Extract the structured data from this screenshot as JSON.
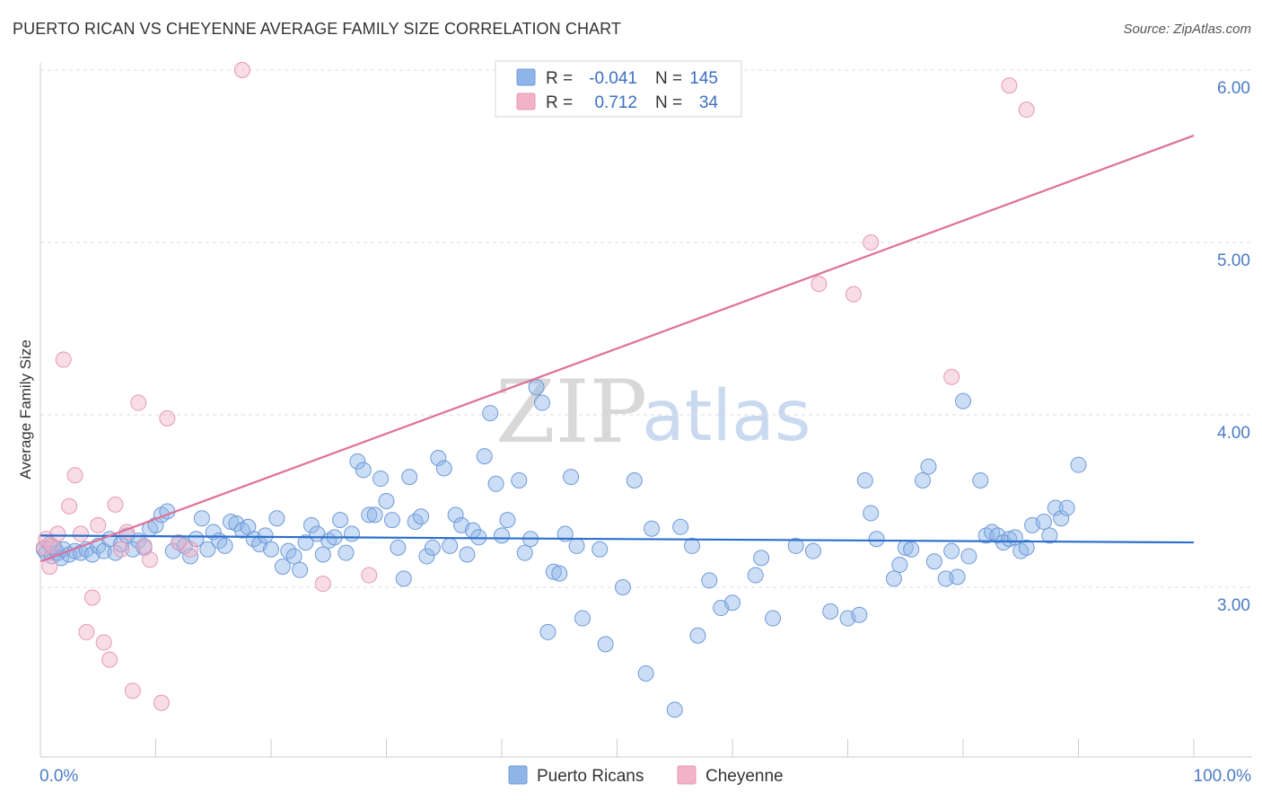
{
  "title": "PUERTO RICAN VS CHEYENNE AVERAGE FAMILY SIZE CORRELATION CHART",
  "source": "Source: ZipAtlas.com",
  "chart_data": {
    "type": "scatter",
    "ylabel": "Average Family Size",
    "xlim": [
      0,
      100
    ],
    "ylim": [
      2.0,
      6.1
    ],
    "x_tick_labels": [
      "0.0%",
      "100.0%"
    ],
    "y_ticks": [
      3.0,
      4.0,
      5.0,
      6.0
    ],
    "y_tick_labels": [
      "3.00",
      "4.00",
      "5.00",
      "6.00"
    ],
    "grid": "horizontal dashed",
    "watermark": [
      "ZIP",
      "atlas"
    ],
    "legend": {
      "placement": "top-center",
      "rows": [
        {
          "r_label": "R =",
          "r_value": "-0.041",
          "n_label": "N =",
          "n_value": "145"
        },
        {
          "r_label": "R =",
          "r_value": "0.712",
          "n_label": "N =",
          "n_value": "34"
        }
      ]
    },
    "series": [
      {
        "name": "Puerto Ricans",
        "color": "#8fb5e8",
        "line_color": "#2d6fcc",
        "trend": {
          "x": [
            0,
            100
          ],
          "y": [
            3.3,
            3.26
          ]
        },
        "points": [
          [
            0.3,
            3.22
          ],
          [
            0.5,
            3.2
          ],
          [
            0.8,
            3.25
          ],
          [
            1.0,
            3.18
          ],
          [
            1.2,
            3.23
          ],
          [
            1.5,
            3.2
          ],
          [
            1.8,
            3.17
          ],
          [
            2.0,
            3.22
          ],
          [
            2.5,
            3.19
          ],
          [
            3.0,
            3.21
          ],
          [
            3.5,
            3.2
          ],
          [
            4.0,
            3.22
          ],
          [
            4.5,
            3.19
          ],
          [
            5.0,
            3.24
          ],
          [
            5.5,
            3.21
          ],
          [
            6.0,
            3.28
          ],
          [
            6.5,
            3.2
          ],
          [
            7.0,
            3.25
          ],
          [
            7.5,
            3.3
          ],
          [
            8.0,
            3.22
          ],
          [
            8.5,
            3.27
          ],
          [
            9.0,
            3.23
          ],
          [
            9.5,
            3.34
          ],
          [
            10.0,
            3.36
          ],
          [
            10.5,
            3.42
          ],
          [
            11.0,
            3.44
          ],
          [
            11.5,
            3.21
          ],
          [
            12.0,
            3.26
          ],
          [
            12.5,
            3.24
          ],
          [
            13.0,
            3.18
          ],
          [
            13.5,
            3.28
          ],
          [
            14.0,
            3.4
          ],
          [
            14.5,
            3.22
          ],
          [
            15.0,
            3.32
          ],
          [
            15.5,
            3.27
          ],
          [
            16.0,
            3.24
          ],
          [
            16.5,
            3.38
          ],
          [
            17.0,
            3.37
          ],
          [
            17.5,
            3.33
          ],
          [
            18.0,
            3.35
          ],
          [
            18.5,
            3.28
          ],
          [
            19.0,
            3.25
          ],
          [
            19.5,
            3.3
          ],
          [
            20.0,
            3.22
          ],
          [
            20.5,
            3.4
          ],
          [
            21.0,
            3.12
          ],
          [
            21.5,
            3.21
          ],
          [
            22.0,
            3.18
          ],
          [
            22.5,
            3.1
          ],
          [
            23.0,
            3.26
          ],
          [
            23.5,
            3.36
          ],
          [
            24.0,
            3.31
          ],
          [
            24.5,
            3.19
          ],
          [
            25.0,
            3.27
          ],
          [
            25.5,
            3.29
          ],
          [
            26.0,
            3.39
          ],
          [
            26.5,
            3.2
          ],
          [
            27.0,
            3.31
          ],
          [
            27.5,
            3.73
          ],
          [
            28.0,
            3.68
          ],
          [
            28.5,
            3.42
          ],
          [
            29.0,
            3.42
          ],
          [
            29.5,
            3.63
          ],
          [
            30.0,
            3.5
          ],
          [
            30.5,
            3.39
          ],
          [
            31.0,
            3.23
          ],
          [
            31.5,
            3.05
          ],
          [
            32.0,
            3.64
          ],
          [
            32.5,
            3.38
          ],
          [
            33.0,
            3.41
          ],
          [
            33.5,
            3.18
          ],
          [
            34.0,
            3.23
          ],
          [
            34.5,
            3.75
          ],
          [
            35.0,
            3.69
          ],
          [
            35.5,
            3.24
          ],
          [
            36.0,
            3.42
          ],
          [
            36.5,
            3.36
          ],
          [
            37.0,
            3.19
          ],
          [
            37.5,
            3.33
          ],
          [
            38.0,
            3.29
          ],
          [
            38.5,
            3.76
          ],
          [
            39.0,
            4.01
          ],
          [
            39.5,
            3.6
          ],
          [
            40.0,
            3.3
          ],
          [
            40.5,
            3.39
          ],
          [
            41.5,
            3.62
          ],
          [
            42.0,
            3.2
          ],
          [
            42.5,
            3.28
          ],
          [
            43.0,
            4.16
          ],
          [
            43.5,
            4.07
          ],
          [
            44.0,
            2.74
          ],
          [
            44.5,
            3.09
          ],
          [
            45.0,
            3.08
          ],
          [
            45.5,
            3.31
          ],
          [
            46.0,
            3.64
          ],
          [
            46.5,
            3.24
          ],
          [
            47.0,
            2.82
          ],
          [
            48.5,
            3.22
          ],
          [
            49.0,
            2.67
          ],
          [
            50.5,
            3.0
          ],
          [
            51.5,
            3.62
          ],
          [
            52.5,
            2.5
          ],
          [
            53.0,
            3.34
          ],
          [
            55.0,
            2.29
          ],
          [
            55.5,
            3.35
          ],
          [
            56.5,
            3.24
          ],
          [
            57.0,
            2.72
          ],
          [
            58.0,
            3.04
          ],
          [
            59.0,
            2.88
          ],
          [
            60.0,
            2.91
          ],
          [
            62.0,
            3.07
          ],
          [
            62.5,
            3.17
          ],
          [
            63.5,
            2.82
          ],
          [
            65.5,
            3.24
          ],
          [
            67.0,
            3.21
          ],
          [
            68.5,
            2.86
          ],
          [
            70.0,
            2.82
          ],
          [
            71.0,
            2.84
          ],
          [
            71.5,
            3.62
          ],
          [
            72.0,
            3.43
          ],
          [
            72.5,
            3.28
          ],
          [
            74.0,
            3.05
          ],
          [
            74.5,
            3.13
          ],
          [
            75.0,
            3.23
          ],
          [
            75.5,
            3.22
          ],
          [
            76.5,
            3.62
          ],
          [
            77.0,
            3.7
          ],
          [
            77.5,
            3.15
          ],
          [
            78.5,
            3.05
          ],
          [
            79.0,
            3.21
          ],
          [
            79.5,
            3.06
          ],
          [
            80.0,
            4.08
          ],
          [
            80.5,
            3.18
          ],
          [
            81.5,
            3.62
          ],
          [
            82.0,
            3.3
          ],
          [
            82.5,
            3.32
          ],
          [
            83.0,
            3.3
          ],
          [
            83.5,
            3.26
          ],
          [
            84.0,
            3.28
          ],
          [
            84.5,
            3.29
          ],
          [
            85.0,
            3.21
          ],
          [
            85.5,
            3.23
          ],
          [
            86.0,
            3.36
          ],
          [
            87.0,
            3.38
          ],
          [
            87.5,
            3.3
          ],
          [
            88.0,
            3.46
          ],
          [
            88.5,
            3.4
          ],
          [
            89.0,
            3.46
          ],
          [
            90.0,
            3.71
          ]
        ]
      },
      {
        "name": "Cheyenne",
        "color": "#f2b3c8",
        "line_color": "#e0709a",
        "trend": {
          "x": [
            0,
            100
          ],
          "y": [
            3.15,
            5.62
          ]
        },
        "points": [
          [
            0.3,
            3.23
          ],
          [
            0.5,
            3.28
          ],
          [
            0.8,
            3.12
          ],
          [
            1.0,
            3.24
          ],
          [
            1.5,
            3.31
          ],
          [
            2.0,
            4.32
          ],
          [
            2.5,
            3.47
          ],
          [
            3.0,
            3.65
          ],
          [
            3.5,
            3.31
          ],
          [
            4.0,
            2.74
          ],
          [
            4.5,
            2.94
          ],
          [
            5.0,
            3.36
          ],
          [
            5.5,
            2.68
          ],
          [
            6.0,
            2.58
          ],
          [
            6.5,
            3.48
          ],
          [
            7.0,
            3.22
          ],
          [
            7.5,
            3.32
          ],
          [
            8.0,
            2.4
          ],
          [
            8.5,
            4.07
          ],
          [
            9.0,
            3.24
          ],
          [
            9.5,
            3.16
          ],
          [
            10.5,
            2.33
          ],
          [
            11.0,
            3.98
          ],
          [
            12.0,
            3.26
          ],
          [
            13.0,
            3.22
          ],
          [
            17.5,
            6.0
          ],
          [
            24.5,
            3.02
          ],
          [
            28.5,
            3.07
          ],
          [
            67.5,
            4.76
          ],
          [
            70.5,
            4.7
          ],
          [
            72.0,
            5.0
          ],
          [
            79.0,
            4.22
          ],
          [
            84.0,
            5.91
          ],
          [
            85.5,
            5.77
          ]
        ]
      }
    ]
  }
}
